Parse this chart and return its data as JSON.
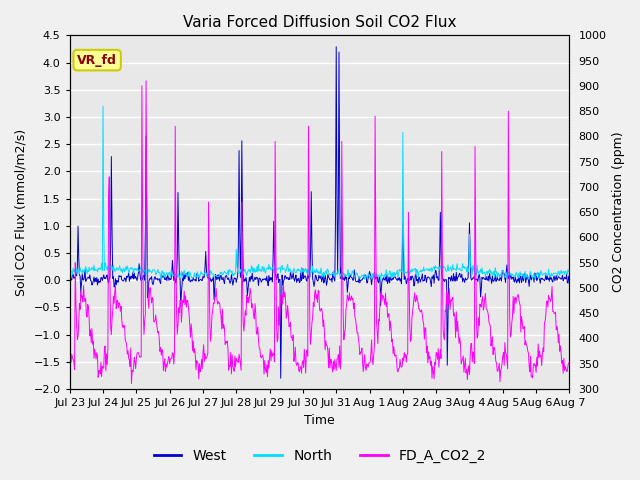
{
  "title": "Varia Forced Diffusion Soil CO2 Flux",
  "xlabel": "Time",
  "ylabel_left": "Soil CO2 Flux (mmol/m2/s)",
  "ylabel_right": "CO2 Concentration (ppm)",
  "ylim_left": [
    -2.0,
    4.5
  ],
  "ylim_right": [
    300,
    1000
  ],
  "annotation_text": "VR_fd",
  "annotation_color": "#8B0000",
  "annotation_bg": "#FFFF99",
  "annotation_border": "#CCCC00",
  "west_color": "#0000CD",
  "north_color": "#00DDFF",
  "co2_color": "#FF00FF",
  "fig_facecolor": "#F0F0F0",
  "axes_facecolor": "#E8E8E8",
  "grid_color": "#FFFFFF",
  "title_fontsize": 11,
  "axis_fontsize": 9,
  "tick_fontsize": 8,
  "legend_labels": [
    "West",
    "North",
    "FD_A_CO2_2"
  ]
}
